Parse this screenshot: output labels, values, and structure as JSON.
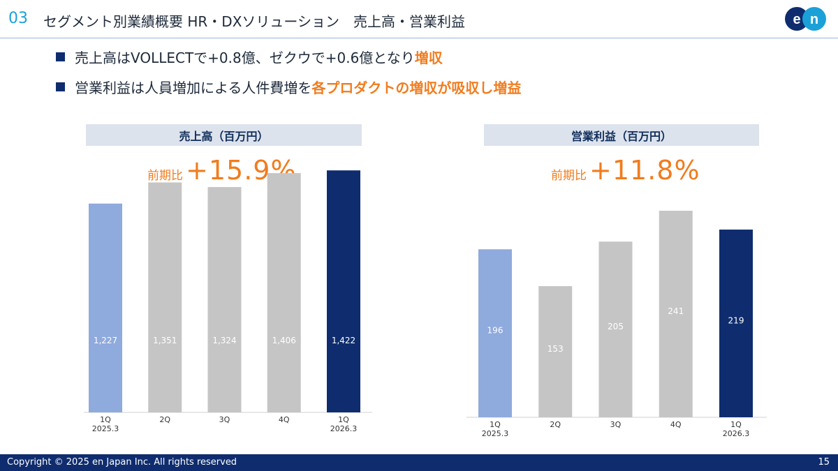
{
  "header": {
    "section_number": "03",
    "title": "セグメント別業績概要 HR・DXソリューション　売上高・営業利益",
    "logo_text": "en"
  },
  "bullets": [
    {
      "text": "売上高はVOLLECTで+0.8億、ゼクウで+0.6億となり",
      "highlight": "増収"
    },
    {
      "text": "営業利益は人員増加による人件費増を",
      "highlight": "各プロダクトの増収が吸収し増益"
    }
  ],
  "colors": {
    "accent_orange": "#f07c1e",
    "bar_first": "#8faadc",
    "bar_middle": "#c5c5c5",
    "bar_latest": "#0f2d6e",
    "navy": "#0f2d6e",
    "section_blue": "#1ba1d8"
  },
  "chart_data": [
    {
      "type": "bar",
      "title": "売上高（百万円）",
      "growth_label": "前期比",
      "growth_value": "+15.9%",
      "categories": [
        "1Q\n2025.3",
        "2Q",
        "3Q",
        "4Q",
        "1Q\n2026.3"
      ],
      "values": [
        1227,
        1351,
        1324,
        1406,
        1422
      ],
      "value_labels": [
        "1,227",
        "1,351",
        "1,324",
        "1,406",
        "1,422"
      ],
      "ylim": [
        0,
        1800
      ]
    },
    {
      "type": "bar",
      "title": "営業利益（百万円）",
      "growth_label": "前期比",
      "growth_value": "+11.8%",
      "categories": [
        "1Q\n2025.3",
        "2Q",
        "3Q",
        "4Q",
        "1Q\n2026.3"
      ],
      "values": [
        196,
        153,
        205,
        241,
        219
      ],
      "value_labels": [
        "196",
        "153",
        "205",
        "241",
        "219"
      ],
      "ylim": [
        0,
        241
      ]
    }
  ],
  "footer": {
    "copyright": "Copyright © 2025 en Japan Inc. All rights reserved",
    "page_number": "15"
  }
}
